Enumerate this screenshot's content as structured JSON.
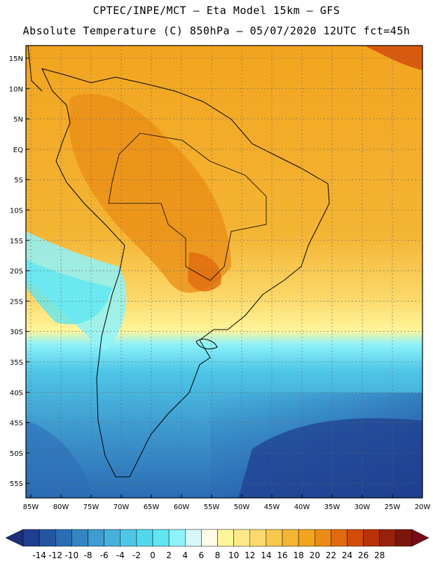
{
  "title_line1": "CPTEC/INPE/MCT –  Eta Model 15km – GFS",
  "title_line2": "Absolute Temperature (C) 850hPa – 05/07/2020 12UTC fct=45h",
  "lat_labels": [
    "15N",
    "10N",
    "5N",
    "EQ",
    "5S",
    "10S",
    "15S",
    "20S",
    "25S",
    "30S",
    "35S",
    "40S",
    "45S",
    "50S",
    "55S"
  ],
  "lon_labels": [
    "85W",
    "80W",
    "75W",
    "70W",
    "65W",
    "60W",
    "55W",
    "50W",
    "45W",
    "40W",
    "35W",
    "30W",
    "25W",
    "20W"
  ],
  "colorbar_labels": [
    "-14",
    "-12",
    "-10",
    "-8",
    "-6",
    "-4",
    "-2",
    "0",
    "2",
    "4",
    "6",
    "8",
    "10",
    "12",
    "14",
    "16",
    "18",
    "20",
    "22",
    "24",
    "26",
    "28"
  ],
  "colorbar_colors": [
    "#1f3f8f",
    "#2456a0",
    "#2b6cb5",
    "#3585c4",
    "#3f9bd0",
    "#47b1dc",
    "#4ec6e6",
    "#52d8ee",
    "#5fe6f2",
    "#8ff2fa",
    "#d6f7fb",
    "#fffbe6",
    "#fff59a",
    "#fde98a",
    "#fbd96a",
    "#f7c84e",
    "#f4b534",
    "#f2a41f",
    "#ea8c16",
    "#e06a0e",
    "#d44c0a",
    "#b8320a",
    "#97220b",
    "#7a160c"
  ],
  "colorbar_low_color": "#1b2f7a",
  "colorbar_high_color": "#7a0a18"
}
